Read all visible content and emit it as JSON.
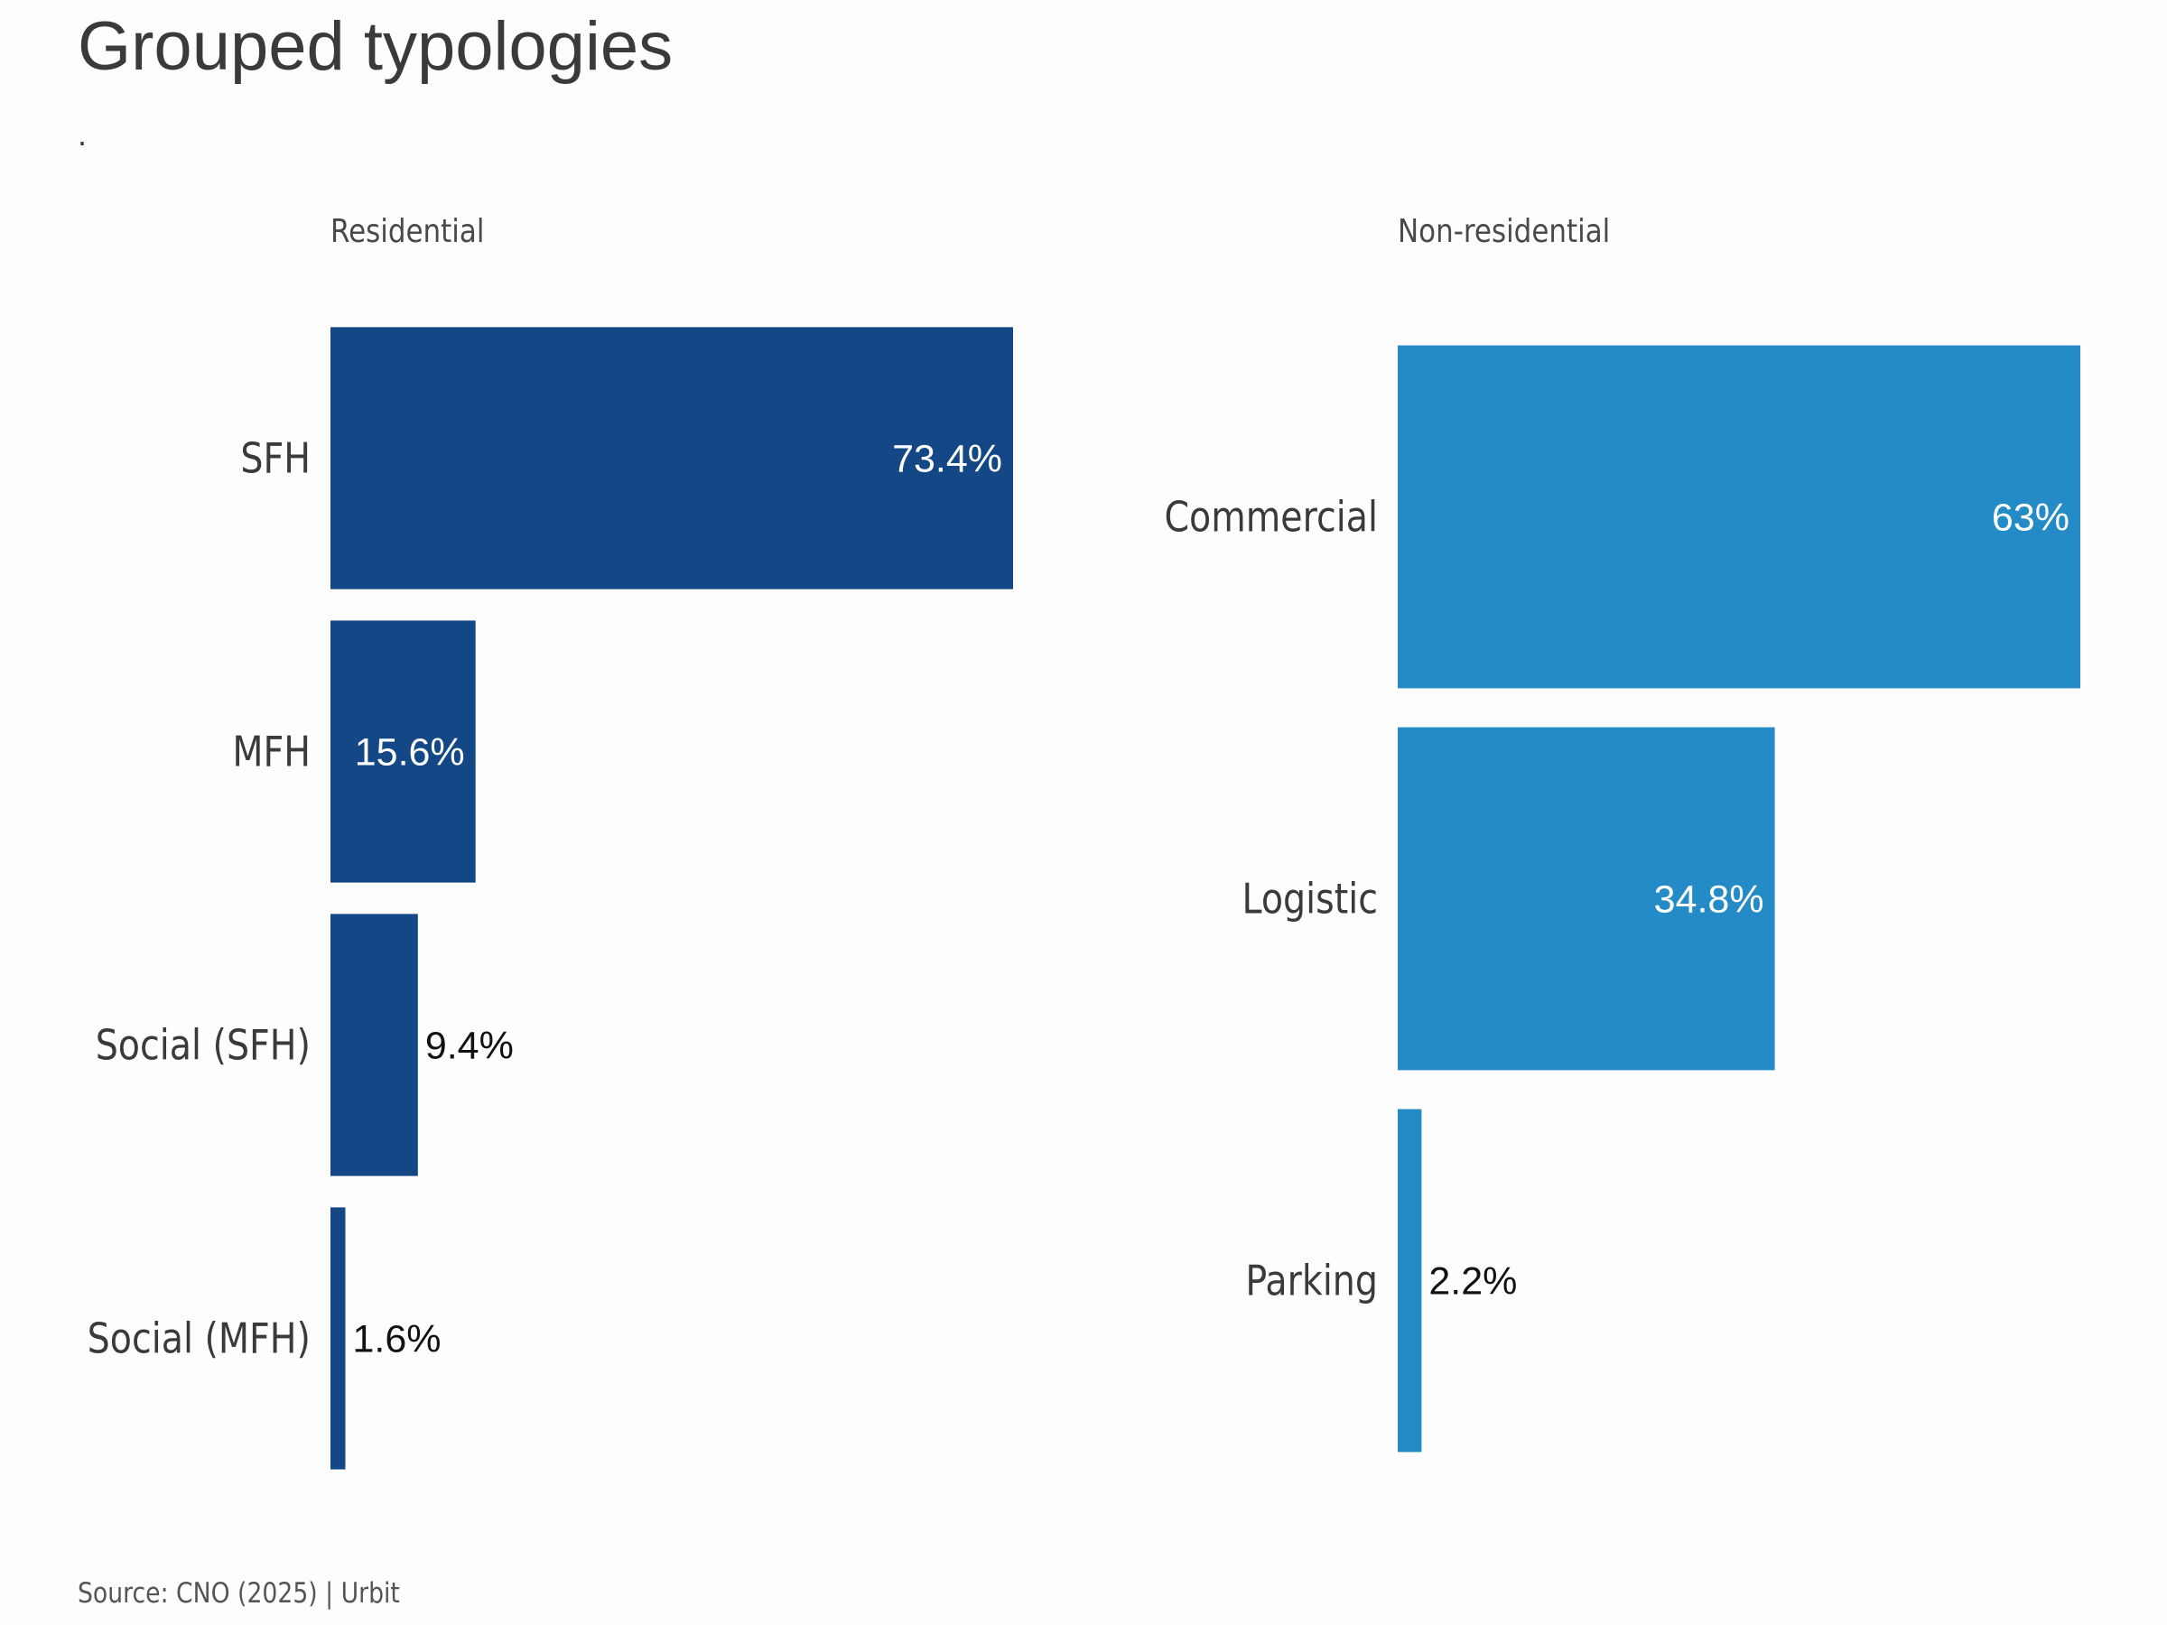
{
  "title": "Grouped typologies",
  "subtitle": ".",
  "source": "Source: CNO (2025) | Urbit",
  "colors": {
    "residential": "#134786",
    "non_residential": "#248bc6",
    "label_inside": "#ffffff",
    "label_outside": "#111111",
    "category_text": "#3a3a3a",
    "panel_title": "#4a4a4a"
  },
  "chart_data": [
    {
      "type": "bar",
      "orientation": "horizontal",
      "title": "Residential",
      "categories": [
        "SFH",
        "MFH",
        "Social (SFH)",
        "Social (MFH)"
      ],
      "values": [
        73.4,
        15.6,
        9.4,
        1.6
      ],
      "data_labels": [
        "73.4%",
        "15.6%",
        "9.4%",
        "1.6%"
      ],
      "unit": "%",
      "xlim": [
        0,
        73.4
      ],
      "grid": false,
      "legend": "none"
    },
    {
      "type": "bar",
      "orientation": "horizontal",
      "title": "Non-residential",
      "categories": [
        "Commercial",
        "Logistic",
        "Parking"
      ],
      "values": [
        63,
        34.8,
        2.2
      ],
      "data_labels": [
        "63%",
        "34.8%",
        "2.2%"
      ],
      "unit": "%",
      "xlim": [
        0,
        63
      ],
      "grid": false,
      "legend": "none"
    }
  ]
}
